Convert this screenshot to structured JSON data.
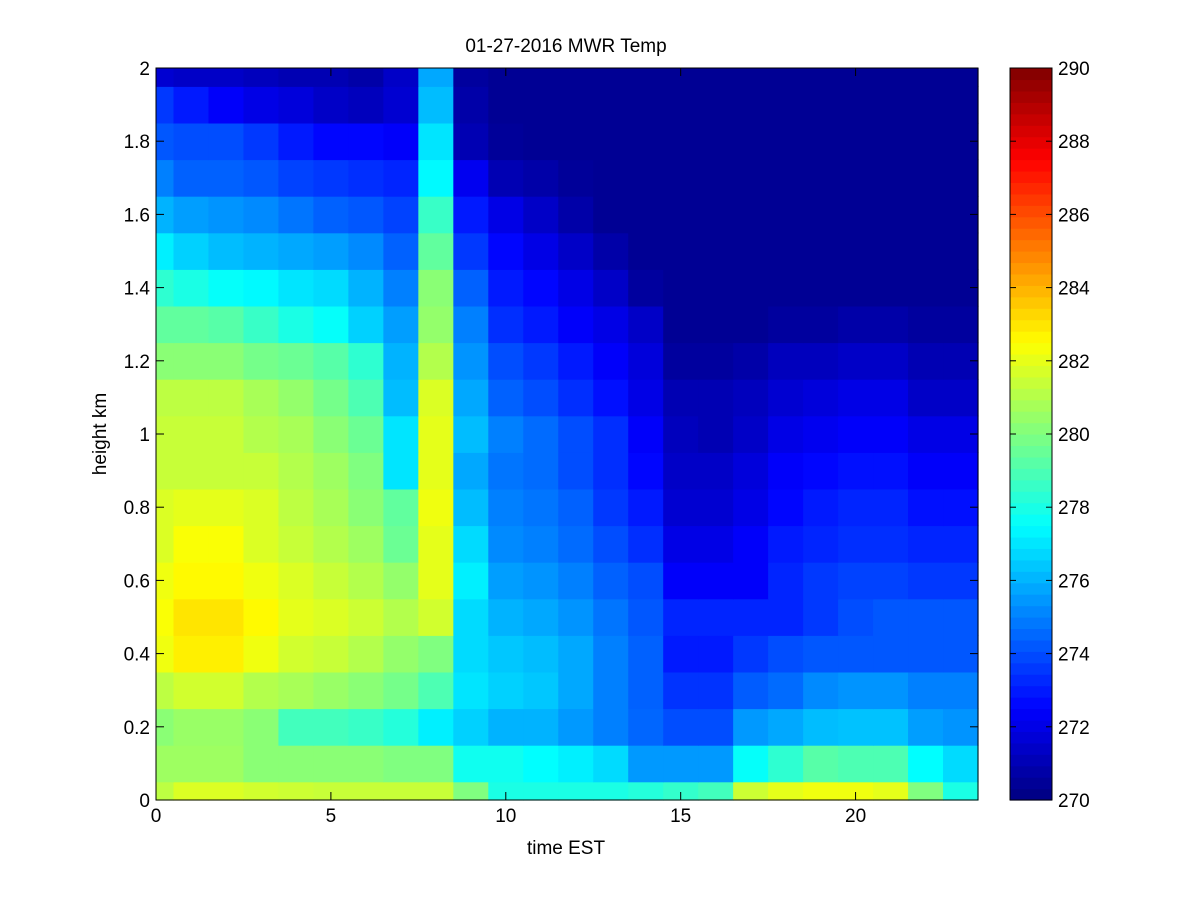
{
  "chart_data": {
    "type": "heatmap",
    "title": "01-27-2016 MWR Temp",
    "xlabel": "time EST",
    "ylabel": "height km",
    "xlim": [
      0,
      23.5
    ],
    "ylim": [
      0,
      2
    ],
    "xticks": [
      "0",
      "5",
      "10",
      "15",
      "20"
    ],
    "yticks": [
      "0",
      "0.2",
      "0.4",
      "0.6",
      "0.8",
      "1",
      "1.2",
      "1.4",
      "1.6",
      "1.8",
      "2"
    ],
    "x_centers": [
      0,
      1,
      2,
      3,
      4,
      5,
      6,
      7,
      8,
      9,
      10,
      11,
      12,
      13,
      14,
      15,
      16,
      17,
      18,
      19,
      20,
      21,
      22,
      23
    ],
    "y_centers": [
      0,
      0.1,
      0.2,
      0.3,
      0.4,
      0.5,
      0.6,
      0.7,
      0.8,
      0.9,
      1.0,
      1.1,
      1.2,
      1.3,
      1.4,
      1.5,
      1.6,
      1.7,
      1.8,
      1.9,
      2.0
    ],
    "colorbar": {
      "colormap": "jet",
      "range": [
        270,
        290
      ],
      "ticks": [
        "270",
        "272",
        "274",
        "276",
        "278",
        "280",
        "282",
        "284",
        "286",
        "288",
        "290"
      ]
    },
    "values": [
      [
        281.2,
        281.8,
        281.8,
        281.6,
        281.5,
        281.4,
        281.4,
        281.4,
        281.4,
        280.0,
        278.0,
        278.0,
        278.0,
        278.0,
        278.2,
        278.5,
        278.8,
        281.5,
        282.0,
        282.2,
        282.2,
        282.0,
        280.0,
        278.0
      ],
      [
        280.6,
        280.6,
        280.6,
        280.2,
        280.2,
        280.2,
        280.2,
        280.0,
        280.0,
        277.8,
        277.8,
        277.5,
        277.2,
        276.8,
        275.5,
        275.5,
        275.5,
        277.6,
        278.4,
        279.2,
        279.0,
        279.0,
        277.5,
        276.8
      ],
      [
        280.2,
        280.5,
        280.5,
        280.2,
        278.8,
        278.8,
        278.6,
        278.2,
        277.2,
        276.6,
        276.0,
        276.0,
        275.5,
        275.0,
        274.5,
        274.0,
        274.0,
        275.5,
        275.8,
        276.2,
        276.3,
        276.3,
        275.6,
        275.4
      ],
      [
        281.2,
        281.6,
        281.6,
        281.0,
        280.8,
        280.5,
        280.2,
        279.8,
        279.0,
        277.0,
        276.6,
        276.4,
        275.8,
        275.0,
        274.4,
        273.5,
        273.5,
        274.3,
        274.6,
        275.2,
        275.4,
        275.4,
        275.0,
        275.0
      ],
      [
        282.2,
        282.8,
        282.8,
        282.2,
        281.6,
        281.4,
        281.0,
        280.4,
        280.0,
        276.8,
        276.4,
        276.2,
        275.8,
        275.0,
        274.4,
        273.0,
        273.0,
        273.6,
        274.0,
        274.2,
        274.2,
        274.2,
        274.2,
        274.2
      ],
      [
        282.4,
        283.0,
        283.0,
        282.6,
        282.0,
        281.8,
        281.5,
        281.0,
        281.6,
        276.8,
        276.0,
        275.8,
        275.4,
        274.8,
        274.2,
        273.2,
        273.2,
        273.2,
        273.2,
        273.6,
        274.0,
        274.2,
        274.2,
        274.2
      ],
      [
        282.2,
        282.6,
        282.6,
        282.2,
        281.8,
        281.4,
        281.0,
        280.4,
        282.0,
        277.2,
        275.6,
        275.4,
        275.0,
        274.4,
        274.0,
        272.4,
        272.4,
        272.4,
        273.2,
        273.6,
        273.8,
        273.8,
        273.6,
        273.6
      ],
      [
        281.8,
        282.4,
        282.4,
        281.8,
        281.4,
        281.0,
        280.6,
        279.6,
        282.0,
        276.8,
        275.2,
        275.0,
        274.6,
        274.0,
        273.4,
        272.0,
        272.0,
        272.4,
        273.0,
        273.2,
        273.4,
        273.4,
        273.2,
        273.2
      ],
      [
        281.8,
        282.0,
        282.0,
        281.8,
        281.2,
        280.8,
        280.2,
        279.4,
        282.2,
        276.2,
        275.0,
        274.8,
        274.4,
        273.6,
        273.0,
        271.6,
        271.6,
        272.0,
        272.6,
        273.0,
        273.2,
        273.2,
        272.8,
        272.8
      ],
      [
        281.4,
        281.4,
        281.4,
        281.4,
        281.0,
        280.6,
        280.0,
        277.0,
        282.0,
        275.8,
        274.8,
        274.6,
        274.0,
        273.4,
        272.6,
        271.4,
        271.4,
        271.8,
        272.4,
        272.6,
        272.8,
        272.8,
        272.4,
        272.4
      ],
      [
        281.4,
        281.4,
        281.4,
        281.0,
        280.8,
        280.2,
        279.6,
        277.0,
        282.0,
        276.2,
        275.0,
        274.6,
        274.0,
        273.4,
        272.4,
        271.2,
        271.0,
        271.4,
        272.0,
        272.2,
        272.4,
        272.4,
        272.0,
        272.0
      ],
      [
        281.2,
        281.2,
        281.2,
        280.8,
        280.4,
        279.8,
        279.0,
        276.2,
        281.8,
        275.8,
        274.4,
        274.0,
        273.4,
        272.8,
        272.0,
        271.0,
        271.0,
        271.2,
        271.6,
        271.8,
        272.0,
        272.0,
        271.4,
        271.4
      ],
      [
        280.2,
        280.2,
        280.2,
        279.8,
        279.6,
        279.2,
        278.4,
        276.0,
        281.0,
        275.4,
        274.0,
        273.6,
        273.0,
        272.4,
        271.8,
        270.6,
        270.6,
        270.8,
        271.2,
        271.2,
        271.4,
        271.4,
        271.0,
        271.0
      ],
      [
        279.4,
        279.4,
        279.2,
        278.6,
        278.0,
        277.6,
        276.6,
        275.6,
        280.4,
        275.0,
        273.4,
        273.0,
        272.4,
        272.0,
        271.4,
        270.4,
        270.4,
        270.4,
        270.6,
        270.6,
        270.8,
        270.8,
        270.6,
        270.6
      ],
      [
        278.4,
        278.0,
        277.6,
        277.4,
        277.0,
        276.8,
        276.0,
        275.0,
        280.2,
        274.4,
        273.0,
        272.6,
        272.0,
        271.4,
        270.6,
        270.4,
        270.4,
        270.4,
        270.4,
        270.4,
        270.4,
        270.4,
        270.4,
        270.4
      ],
      [
        277.2,
        276.6,
        276.2,
        276.0,
        275.8,
        275.6,
        275.2,
        274.4,
        279.4,
        273.6,
        272.6,
        272.0,
        271.4,
        270.8,
        270.4,
        270.4,
        270.4,
        270.4,
        270.4,
        270.4,
        270.4,
        270.4,
        270.4,
        270.4
      ],
      [
        276.0,
        275.6,
        275.4,
        275.2,
        274.8,
        274.4,
        274.2,
        273.8,
        278.6,
        273.0,
        272.0,
        271.4,
        270.8,
        270.4,
        270.4,
        270.4,
        270.4,
        270.4,
        270.4,
        270.4,
        270.4,
        270.4,
        270.4,
        270.4
      ],
      [
        275.0,
        274.4,
        274.4,
        274.2,
        273.8,
        273.6,
        273.4,
        273.2,
        277.4,
        272.2,
        271.0,
        270.8,
        270.5,
        270.4,
        270.4,
        270.4,
        270.4,
        270.4,
        270.4,
        270.4,
        270.4,
        270.4,
        270.4,
        270.4
      ],
      [
        274.2,
        274.0,
        274.0,
        273.6,
        273.0,
        272.6,
        272.6,
        272.4,
        277.0,
        271.0,
        270.5,
        270.4,
        270.4,
        270.4,
        270.4,
        270.4,
        270.4,
        270.4,
        270.4,
        270.4,
        270.4,
        270.4,
        270.4,
        270.4
      ],
      [
        273.6,
        273.0,
        272.4,
        272.0,
        271.8,
        271.4,
        271.2,
        271.6,
        276.2,
        270.8,
        270.4,
        270.4,
        270.4,
        270.4,
        270.4,
        270.4,
        270.4,
        270.4,
        270.4,
        270.4,
        270.4,
        270.4,
        270.4,
        270.4
      ],
      [
        271.6,
        271.4,
        271.4,
        271.2,
        271.0,
        271.0,
        270.8,
        271.4,
        275.8,
        270.6,
        270.4,
        270.4,
        270.4,
        270.4,
        270.4,
        270.4,
        270.4,
        270.4,
        270.4,
        270.4,
        270.4,
        270.4,
        270.4,
        270.4
      ]
    ]
  }
}
